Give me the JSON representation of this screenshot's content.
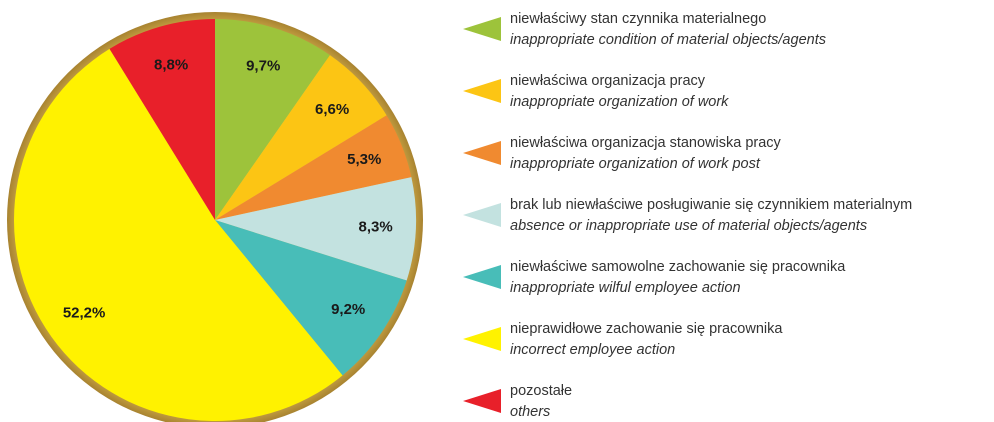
{
  "chart_data": {
    "type": "pie",
    "categories": [
      "niewłaściwy stan czynnika materialnego",
      "niewłaściwa organizacja pracy",
      "niewłaściwa organizacja stanowiska pracy",
      "brak lub niewłaściwe posługiwanie się czynnikiem materialnym",
      "niewłaściwe samowolne zachowanie się pracownika",
      "nieprawidłowe zachowanie się pracownika",
      "pozostałe"
    ],
    "categories_en": [
      "inappropriate condition of material objects/agents",
      "inappropriate organization of work",
      "inappropriate organization of work post",
      "absence or inappropriate use of material objects/agents",
      "inappropriate wilful employee action",
      "incorrect employee action",
      "others"
    ],
    "values": [
      9.7,
      6.6,
      5.3,
      8.3,
      9.2,
      52.2,
      8.8
    ],
    "value_labels": [
      "9,7%",
      "6,6%",
      "5,3%",
      "8,3%",
      "9,2%",
      "52,2%",
      "8,8%"
    ],
    "colors": [
      "#9dc33b",
      "#fcc514",
      "#f08a30",
      "#c3e2e0",
      "#48bdb8",
      "#fff200",
      "#e8202a"
    ]
  }
}
